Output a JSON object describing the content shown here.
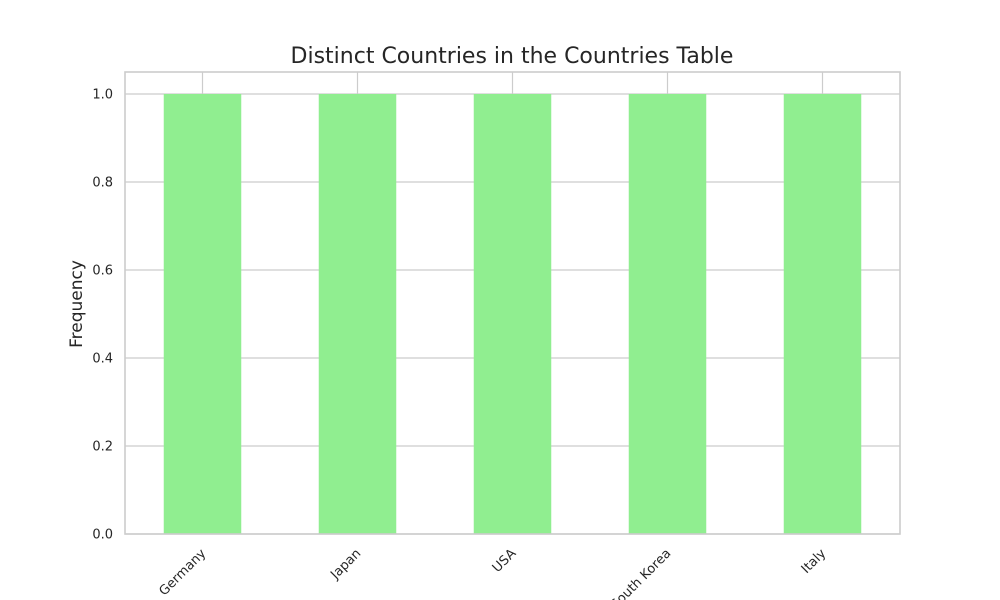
{
  "chart_data": {
    "type": "bar",
    "title": "Distinct Countries in the Countries Table",
    "xlabel": "",
    "ylabel": "Frequency",
    "categories": [
      "Germany",
      "Japan",
      "USA",
      "South Korea",
      "Italy"
    ],
    "values": [
      1.0,
      1.0,
      1.0,
      1.0,
      1.0
    ],
    "ylim": [
      0,
      1.05
    ],
    "yticks": [
      0.0,
      0.2,
      0.4,
      0.6,
      0.8,
      1.0
    ],
    "ytick_labels": [
      "0.0",
      "0.2",
      "0.4",
      "0.6",
      "0.8",
      "1.0"
    ],
    "x_tick_rotation_deg": 45,
    "grid": true,
    "legend": "none",
    "colors": {
      "bar": "#90ee90",
      "grid": "#cccccc",
      "text": "#262626",
      "background": "#ffffff"
    }
  }
}
